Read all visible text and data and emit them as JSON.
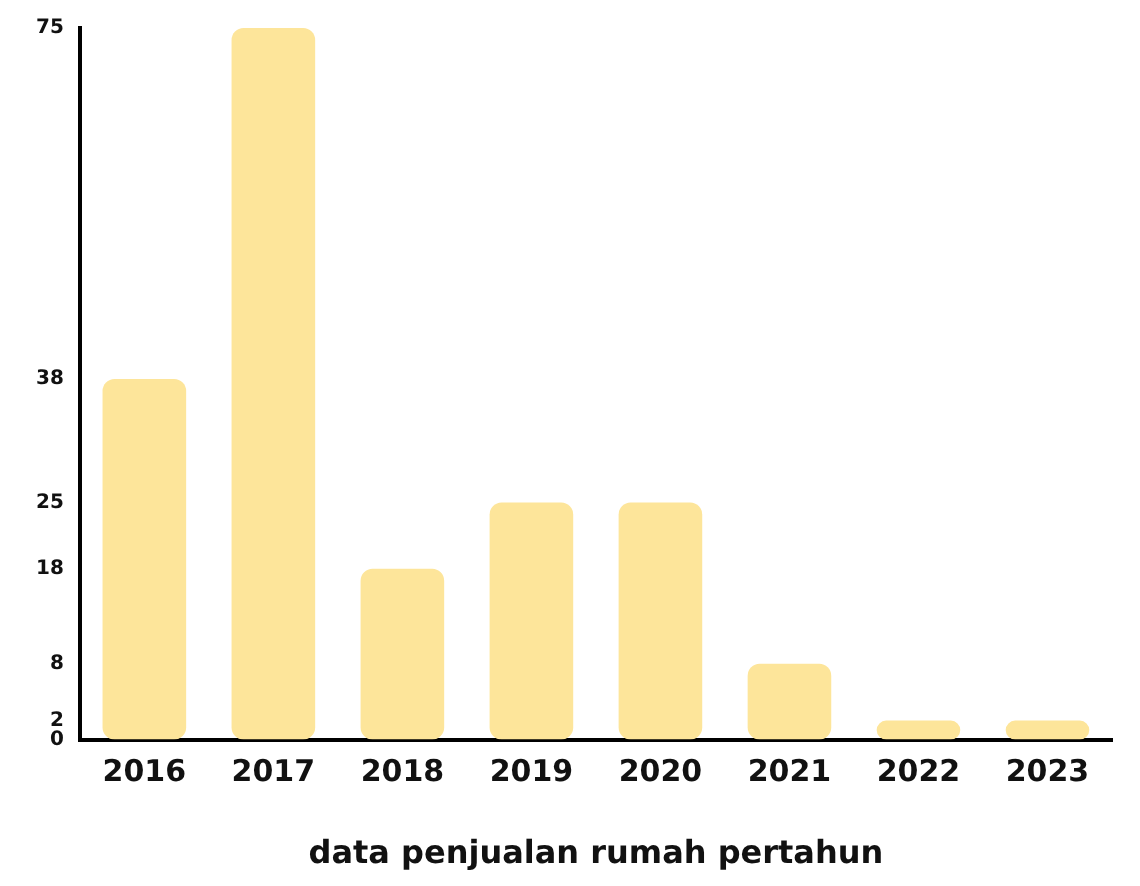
{
  "chart_data": {
    "type": "bar",
    "xlabel": "data penjualan rumah pertahun",
    "categories": [
      "2016",
      "2017",
      "2018",
      "2019",
      "2020",
      "2021",
      "2022",
      "2023"
    ],
    "values": [
      38,
      75,
      18,
      25,
      25,
      8,
      2,
      2
    ],
    "color": "#fde59a",
    "ylim": [
      0,
      75
    ],
    "yticks": [
      0,
      2,
      8,
      18,
      25,
      38,
      75
    ],
    "grid": false,
    "legend": false
  }
}
